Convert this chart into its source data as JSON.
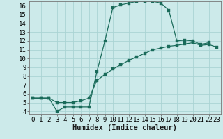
{
  "xlabel": "Humidex (Indice chaleur)",
  "background_color": "#cceaea",
  "grid_color": "#aad4d4",
  "line_color": "#1a6b5a",
  "xlim": [
    -0.5,
    23.5
  ],
  "ylim": [
    3.7,
    16.5
  ],
  "xticks": [
    0,
    1,
    2,
    3,
    4,
    5,
    6,
    7,
    8,
    9,
    10,
    11,
    12,
    13,
    14,
    15,
    16,
    17,
    18,
    19,
    20,
    21,
    22,
    23
  ],
  "yticks": [
    4,
    5,
    6,
    7,
    8,
    9,
    10,
    11,
    12,
    13,
    14,
    15,
    16
  ],
  "curve1_x": [
    0,
    1,
    2,
    3,
    4,
    5,
    6,
    7,
    8,
    9,
    10,
    11,
    12,
    13,
    14,
    15,
    16,
    17,
    18,
    19,
    20,
    21,
    22
  ],
  "curve1_y": [
    5.5,
    5.5,
    5.5,
    4.0,
    4.5,
    4.5,
    4.5,
    4.5,
    8.5,
    12.0,
    15.8,
    16.1,
    16.3,
    16.5,
    16.5,
    16.5,
    16.3,
    15.5,
    12.0,
    12.1,
    12.0,
    11.6,
    11.8
  ],
  "curve2_x": [
    0,
    1,
    2,
    3,
    4,
    5,
    6,
    7,
    8,
    9,
    10,
    11,
    12,
    13,
    14,
    15,
    16,
    17,
    18,
    19,
    20,
    21,
    22,
    23
  ],
  "curve2_y": [
    5.5,
    5.5,
    5.5,
    5.0,
    5.0,
    5.0,
    5.2,
    5.5,
    7.5,
    8.2,
    8.8,
    9.3,
    9.8,
    10.2,
    10.6,
    11.0,
    11.2,
    11.4,
    11.5,
    11.65,
    11.8,
    11.5,
    11.6,
    11.3
  ],
  "marker_size": 2.2,
  "font_size": 6.5,
  "xlabel_fontsize": 7.5
}
